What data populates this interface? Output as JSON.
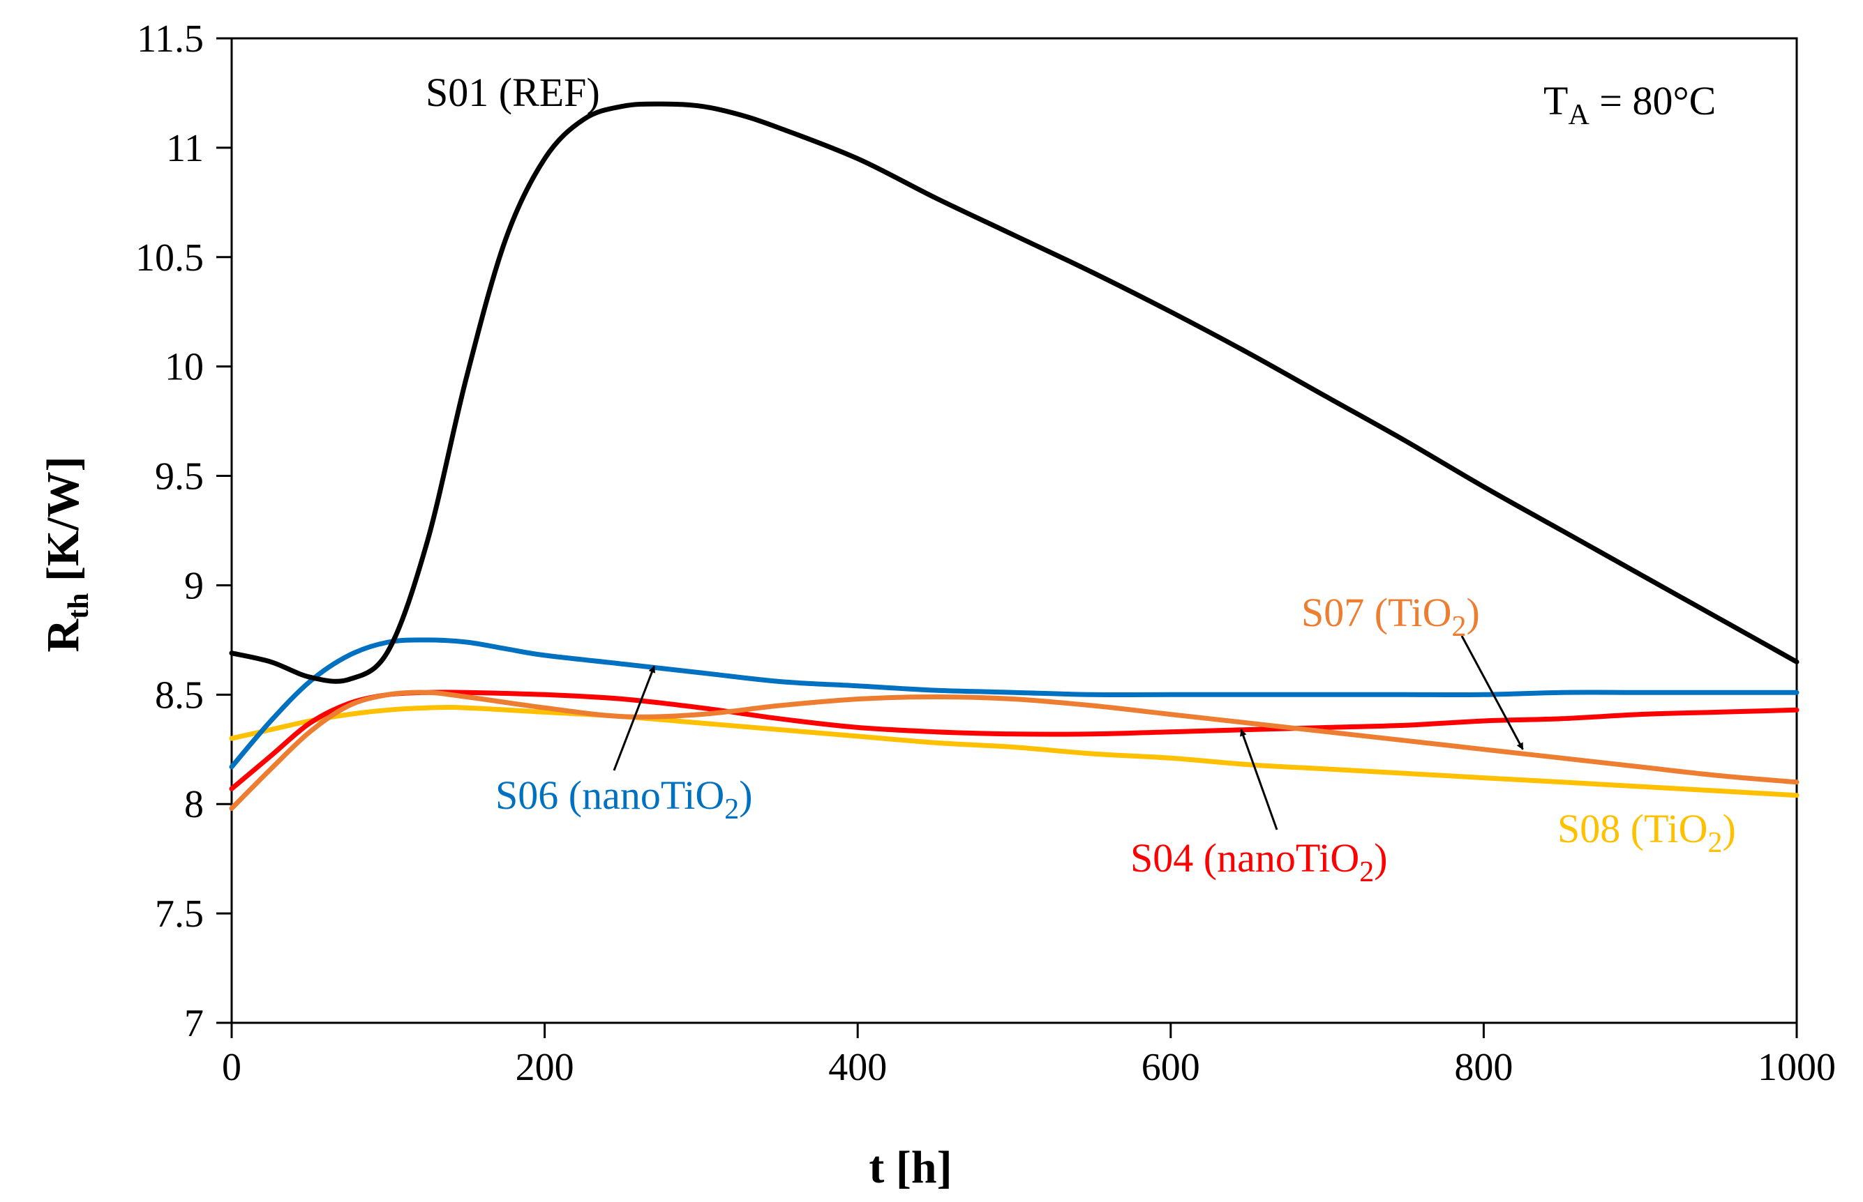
{
  "chart_data": {
    "type": "line",
    "title": "",
    "xlabel": "t [h]",
    "ylabel": {
      "main": "R",
      "sub": "th",
      "unit": " [K/W]"
    },
    "xlim": [
      0,
      1000
    ],
    "ylim": [
      7,
      11.5
    ],
    "x_ticks": [
      0,
      200,
      400,
      600,
      800,
      1000
    ],
    "y_ticks": [
      7,
      7.5,
      8,
      8.5,
      9,
      9.5,
      10,
      10.5,
      11,
      11.5
    ],
    "x_tick_labels": [
      "0",
      "200",
      "400",
      "600",
      "800",
      "1000"
    ],
    "y_tick_labels": [
      "7",
      "7.5",
      "8",
      "8.5",
      "9",
      "9.5",
      "10",
      "10.5",
      "11",
      "11.5"
    ],
    "grid": false,
    "legend": "none (inline labels)",
    "condition": {
      "main": "T",
      "sub": "A",
      "rest": " = 80°C"
    },
    "series": [
      {
        "name": "S01 (REF)",
        "label": {
          "main": "S01 (REF)",
          "sub": "",
          "rest": ""
        },
        "color": "#000000",
        "x": [
          0,
          25,
          50,
          75,
          100,
          125,
          150,
          175,
          200,
          225,
          250,
          275,
          300,
          325,
          350,
          400,
          450,
          500,
          550,
          600,
          650,
          700,
          750,
          800,
          850,
          900,
          950,
          1000
        ],
        "y": [
          8.69,
          8.65,
          8.58,
          8.57,
          8.7,
          9.2,
          9.95,
          10.58,
          10.95,
          11.13,
          11.19,
          11.2,
          11.19,
          11.15,
          11.09,
          10.95,
          10.77,
          10.6,
          10.43,
          10.25,
          10.06,
          9.86,
          9.66,
          9.45,
          9.25,
          9.05,
          8.85,
          8.65
        ]
      },
      {
        "name": "S06 (nanoTiO2)",
        "label": {
          "main": "S06 (nanoTiO",
          "sub": "2",
          "rest": ")"
        },
        "color": "#0070C0",
        "x": [
          0,
          25,
          50,
          75,
          100,
          125,
          150,
          175,
          200,
          250,
          300,
          350,
          400,
          450,
          500,
          550,
          600,
          650,
          700,
          750,
          800,
          850,
          900,
          950,
          1000
        ],
        "y": [
          8.17,
          8.38,
          8.56,
          8.68,
          8.74,
          8.75,
          8.74,
          8.71,
          8.68,
          8.64,
          8.6,
          8.56,
          8.54,
          8.52,
          8.51,
          8.5,
          8.5,
          8.5,
          8.5,
          8.5,
          8.5,
          8.51,
          8.51,
          8.51,
          8.51
        ]
      },
      {
        "name": "S04 (nanoTiO2)",
        "label": {
          "main": "S04 (nanoTiO",
          "sub": "2",
          "rest": ")"
        },
        "color": "#FF0000",
        "x": [
          0,
          25,
          50,
          75,
          100,
          125,
          150,
          200,
          250,
          300,
          350,
          400,
          450,
          500,
          550,
          600,
          650,
          700,
          750,
          800,
          850,
          900,
          950,
          1000
        ],
        "y": [
          8.07,
          8.22,
          8.37,
          8.46,
          8.5,
          8.51,
          8.51,
          8.5,
          8.48,
          8.44,
          8.39,
          8.35,
          8.33,
          8.32,
          8.32,
          8.33,
          8.34,
          8.35,
          8.36,
          8.38,
          8.39,
          8.41,
          8.42,
          8.43
        ]
      },
      {
        "name": "S07 (TiO2)",
        "label": {
          "main": "S07 (TiO",
          "sub": "2",
          "rest": ")"
        },
        "color": "#ED7D31",
        "x": [
          0,
          25,
          50,
          75,
          100,
          125,
          150,
          200,
          250,
          300,
          350,
          400,
          450,
          500,
          550,
          600,
          650,
          700,
          750,
          800,
          850,
          900,
          950,
          1000
        ],
        "y": [
          7.98,
          8.16,
          8.33,
          8.45,
          8.5,
          8.51,
          8.49,
          8.44,
          8.4,
          8.41,
          8.45,
          8.48,
          8.49,
          8.48,
          8.45,
          8.41,
          8.37,
          8.33,
          8.29,
          8.25,
          8.21,
          8.17,
          8.13,
          8.1
        ]
      },
      {
        "name": "S08 (TiO2)",
        "label": {
          "main": "S08 (TiO",
          "sub": "2",
          "rest": ")"
        },
        "color": "#FFC000",
        "x": [
          0,
          25,
          50,
          75,
          100,
          125,
          150,
          200,
          250,
          300,
          350,
          400,
          450,
          500,
          550,
          600,
          650,
          700,
          750,
          800,
          850,
          900,
          950,
          1000
        ],
        "y": [
          8.3,
          8.34,
          8.38,
          8.41,
          8.43,
          8.44,
          8.44,
          8.42,
          8.4,
          8.37,
          8.34,
          8.31,
          8.28,
          8.26,
          8.23,
          8.21,
          8.18,
          8.16,
          8.14,
          8.12,
          8.1,
          8.08,
          8.06,
          8.04
        ]
      }
    ],
    "annotations": [
      {
        "series": 0,
        "arrow": false
      },
      {
        "series": 1,
        "arrow": true,
        "points_to": [
          270,
          8.63
        ]
      },
      {
        "series": 2,
        "arrow": true,
        "points_to": [
          645,
          8.34
        ]
      },
      {
        "series": 3,
        "arrow": true,
        "points_to": [
          825,
          8.25
        ]
      },
      {
        "series": 4,
        "arrow": false
      }
    ]
  }
}
